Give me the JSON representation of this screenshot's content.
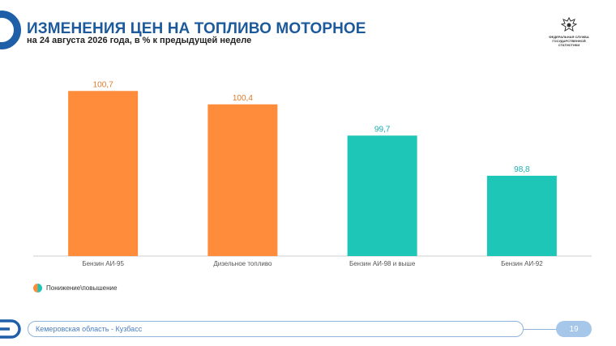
{
  "header": {
    "title": "ИЗМЕНЕНИЯ ЦЕН НА ТОПЛИВО МОТОРНОЕ",
    "subtitle": "на 24 августа 2026 года, в % к предыдущей неделе"
  },
  "logo": {
    "text": "ФЕДЕРАЛЬНАЯ СЛУЖБА ГОСУДАРСТВЕННОЙ СТАТИСТИКИ"
  },
  "chart_data": {
    "type": "bar",
    "categories": [
      "Бензин АИ-95",
      "Дизельное топливо",
      "Бензин АИ-98 и выше",
      "Бензин АИ-92"
    ],
    "values": [
      100.7,
      100.4,
      99.7,
      98.8
    ],
    "value_labels": [
      "100,7",
      "100,4",
      "99,7",
      "98,8"
    ],
    "bar_colors": [
      "#ff8c3b",
      "#ff8c3b",
      "#1ec6b8",
      "#1ec6b8"
    ],
    "label_colors": [
      "#e07a2b",
      "#e07a2b",
      "#1aaeb0",
      "#1aaeb0"
    ],
    "ylim": [
      97.0,
      100.85
    ],
    "grid": false,
    "legend_position": "bottom-left",
    "title": "",
    "xlabel": "",
    "ylabel": ""
  },
  "legend": {
    "label": "Понижение\\повышение"
  },
  "colors": {
    "accent": "#1d5a9c",
    "increase": "#ff8c3b",
    "decrease": "#1ec6b8"
  },
  "footer": {
    "region": "Кемеровская область - Кузбасс",
    "page": "19"
  }
}
